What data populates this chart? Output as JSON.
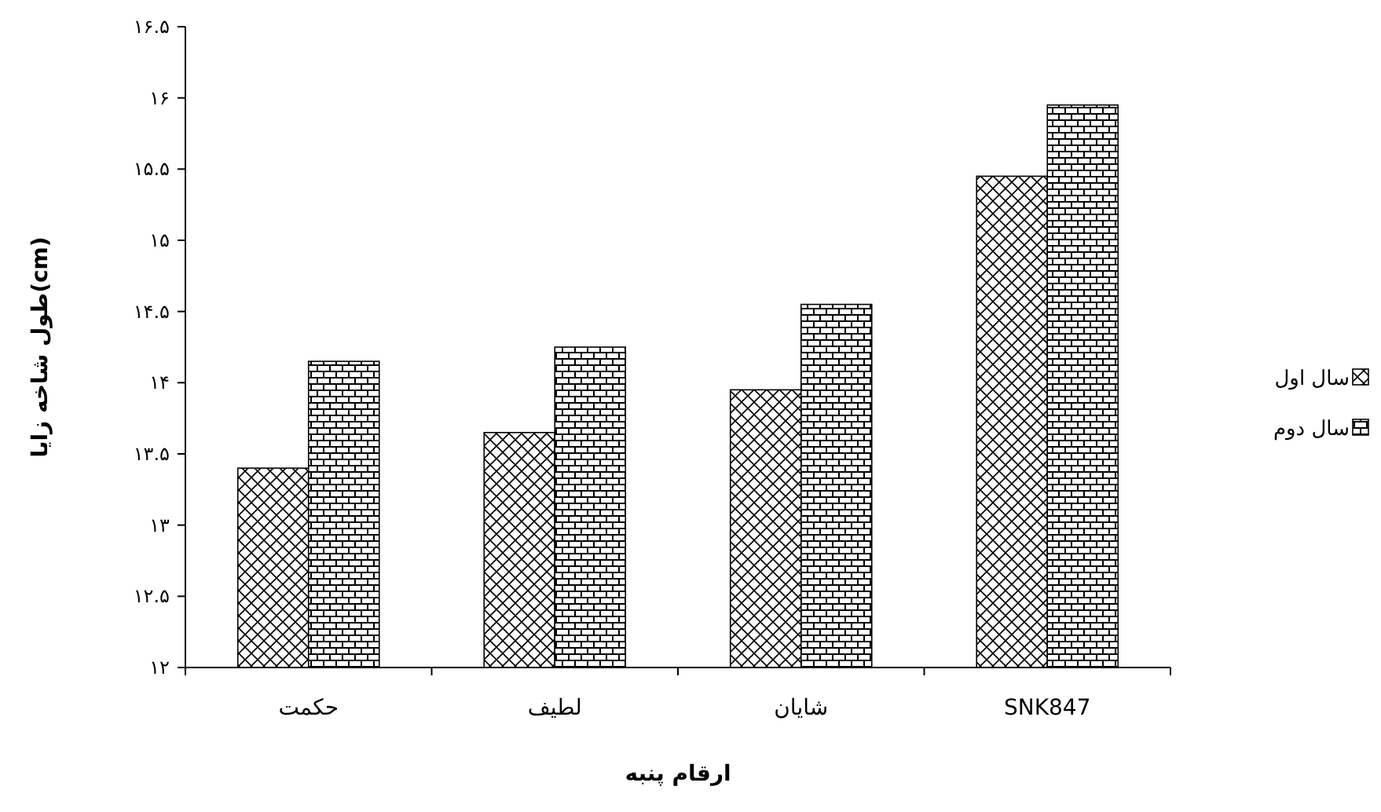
{
  "chart_data": {
    "type": "bar",
    "xlabel": "ارقام پنبه",
    "ylabel": "طول شاخه زایا(cm)",
    "categories": [
      "حکمت",
      "لطیف",
      "شایان",
      "SNK847"
    ],
    "series": [
      {
        "name": "سال اول",
        "color": "#000000",
        "values": [
          13.4,
          13.65,
          13.95,
          15.45
        ]
      },
      {
        "name": "سال دوم",
        "color": "#000000",
        "values": [
          14.15,
          14.25,
          14.55,
          15.95
        ]
      }
    ],
    "ylim": [
      12,
      16.5
    ],
    "yticks": [
      {
        "value": 12,
        "label": "۱۲"
      },
      {
        "value": 12.5,
        "label": "۱۲.۵"
      },
      {
        "value": 13,
        "label": "۱۳"
      },
      {
        "value": 13.5,
        "label": "۱۳.۵"
      },
      {
        "value": 14,
        "label": "۱۴"
      },
      {
        "value": 14.5,
        "label": "۱۴.۵"
      },
      {
        "value": 15,
        "label": "۱۵"
      },
      {
        "value": 15.5,
        "label": "۱۵.۵"
      },
      {
        "value": 16,
        "label": "۱۶"
      },
      {
        "value": 16.5,
        "label": "۱۶.۵"
      }
    ],
    "legend": "right"
  }
}
